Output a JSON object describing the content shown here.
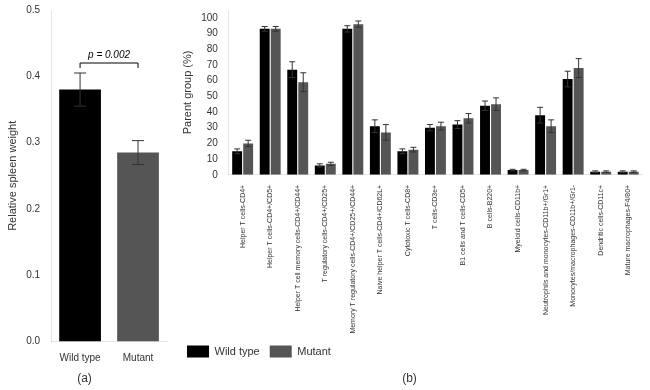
{
  "chart_data": [
    {
      "type": "bar",
      "title": "(a)",
      "categories": [
        "Wild type",
        "Mutant"
      ],
      "values": [
        0.38,
        0.285
      ],
      "errors": [
        0.025,
        0.018
      ],
      "colors": [
        "#000000",
        "#555555"
      ],
      "ylabel": "Relative spleen weight",
      "ylim": [
        0,
        0.5
      ],
      "yticks": [
        {
          "value": 0,
          "label": "0.0"
        },
        0.1,
        0.2,
        0.3,
        0.4,
        0.5
      ],
      "annotations": [
        "p = 0.002"
      ],
      "grid": false
    },
    {
      "type": "bar",
      "title": "(b)",
      "categories": [
        "Helper T cells-CD4+",
        "Helper T cells-CD4+/CD5+",
        "Helper T cell memory cells-CD4+/CD44+",
        "T regulatory cells-CD4+/CD25+",
        "Memory T regulatory cells-CD4+/CD25+/CD44+",
        "Naive helper T cells-CD4+/CD62L+",
        "Cytotoxic T cells-CD8+",
        "T cells-CD3e+",
        "B1 cells and T cells-CD5+",
        "B cells-B220+",
        "Myeloid cells-CD11b+",
        "Neutrophils and monocytes-CD11b+/Gr1+",
        "Monocytes/macrophages-CD11b+/Gr1-",
        "Dendritic cells-CD11c+",
        "Mature macrophages-F4/80+"
      ],
      "series": [
        {
          "name": "Wild type",
          "color": "#000000",
          "values": [
            15,
            93,
            67,
            6,
            93,
            31,
            15,
            30,
            32,
            44,
            3,
            38,
            61,
            2,
            2
          ],
          "errors": [
            1.5,
            1.5,
            5,
            1,
            2,
            4,
            1.5,
            2,
            2.5,
            3,
            0.5,
            5,
            5,
            0.5,
            0.5
          ]
        },
        {
          "name": "Mutant",
          "color": "#555555",
          "values": [
            20,
            93,
            59,
            7,
            96,
            27,
            16,
            31,
            36,
            45,
            3,
            31,
            68,
            2,
            2
          ],
          "errors": [
            2,
            1.5,
            6,
            1,
            2,
            5,
            1.5,
            2.5,
            3,
            4,
            0.5,
            4,
            6,
            0.5,
            0.5
          ]
        }
      ],
      "ylabel": "Parent group (%)",
      "ylim": [
        0,
        105
      ],
      "yticks": [
        0,
        10,
        20,
        30,
        40,
        50,
        60,
        70,
        80,
        90,
        100
      ],
      "legend": "lower left",
      "grid": false
    }
  ]
}
